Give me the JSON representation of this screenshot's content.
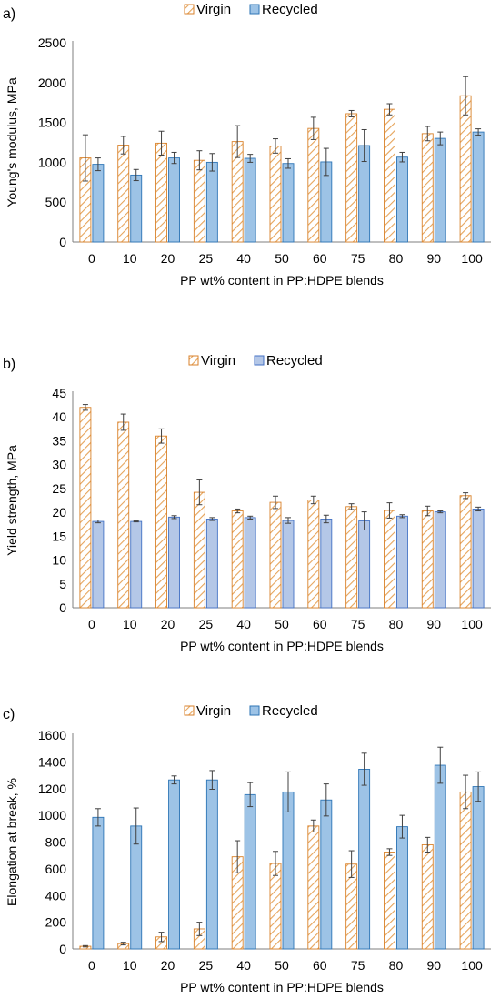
{
  "colors": {
    "virgin_stroke": "#D9822B",
    "virgin_hatch": "#E6A45A",
    "recycled_fill": "#9DC3E6",
    "recycled_stroke": "#2E75B6",
    "recycled_fill_b": "#B4C7E7",
    "recycled_stroke_b": "#4472C4",
    "axis": "#7F7F7F",
    "error_bar": "#404040"
  },
  "chart_data": [
    {
      "panel": "a)",
      "type": "bar",
      "xlabel": "PP wt% content in PP:HDPE blends",
      "ylabel": "Young's modulus, MPa",
      "ylim": [
        0,
        2500
      ],
      "yticks": [
        0,
        500,
        1000,
        1500,
        2000,
        2500
      ],
      "categories": [
        "0",
        "10",
        "20",
        "25",
        "40",
        "50",
        "60",
        "75",
        "80",
        "90",
        "100"
      ],
      "legend": "top-center",
      "series": [
        {
          "name": "Virgin",
          "values": [
            1055,
            1215,
            1240,
            1025,
            1260,
            1205,
            1425,
            1610,
            1665,
            1360,
            1835
          ],
          "errors": [
            290,
            110,
            150,
            120,
            200,
            90,
            140,
            40,
            70,
            90,
            240
          ]
        },
        {
          "name": "Recycled",
          "values": [
            975,
            840,
            1055,
            1000,
            1050,
            985,
            1005,
            1210,
            1065,
            1300,
            1380
          ],
          "errors": [
            80,
            70,
            70,
            110,
            50,
            60,
            170,
            200,
            60,
            80,
            40
          ]
        }
      ]
    },
    {
      "panel": "b)",
      "type": "bar",
      "xlabel": "PP wt% content in PP:HDPE blends",
      "ylabel": "Yield strength, MPa",
      "ylim": [
        0,
        45
      ],
      "yticks": [
        0,
        5,
        10,
        15,
        20,
        25,
        30,
        35,
        40,
        45
      ],
      "categories": [
        "0",
        "10",
        "20",
        "25",
        "40",
        "50",
        "60",
        "75",
        "80",
        "90",
        "100"
      ],
      "legend": "top-center",
      "series": [
        {
          "name": "Virgin",
          "values": [
            42.0,
            38.9,
            36.0,
            24.2,
            20.3,
            22.1,
            22.6,
            21.2,
            20.4,
            20.3,
            23.5
          ],
          "errors": [
            0.6,
            1.7,
            1.5,
            2.6,
            0.4,
            1.3,
            0.8,
            0.6,
            1.6,
            1.0,
            0.6
          ]
        },
        {
          "name": "Recycled",
          "values": [
            18.1,
            18.1,
            19.0,
            18.6,
            18.9,
            18.3,
            18.6,
            18.2,
            19.2,
            20.1,
            20.7
          ],
          "errors": [
            0.3,
            0.1,
            0.3,
            0.3,
            0.3,
            0.6,
            0.8,
            1.9,
            0.3,
            0.2,
            0.4
          ]
        }
      ]
    },
    {
      "panel": "c)",
      "type": "bar",
      "xlabel": "PP wt% content in PP:HDPE blends",
      "ylabel": "Elongation at break, %",
      "ylim": [
        0,
        1600
      ],
      "yticks": [
        0,
        200,
        400,
        600,
        800,
        1000,
        1200,
        1400,
        1600
      ],
      "categories": [
        "0",
        "10",
        "20",
        "25",
        "40",
        "50",
        "60",
        "75",
        "80",
        "90",
        "100"
      ],
      "legend": "top-center",
      "series": [
        {
          "name": "Virgin",
          "values": [
            20,
            40,
            90,
            150,
            690,
            640,
            920,
            635,
            725,
            780,
            1175
          ],
          "errors": [
            5,
            10,
            35,
            50,
            120,
            90,
            45,
            100,
            25,
            55,
            125
          ]
        },
        {
          "name": "Recycled",
          "values": [
            985,
            920,
            1265,
            1265,
            1155,
            1175,
            1115,
            1345,
            915,
            1375,
            1215
          ],
          "errors": [
            65,
            135,
            30,
            70,
            90,
            150,
            120,
            120,
            85,
            135,
            110
          ]
        }
      ]
    }
  ]
}
